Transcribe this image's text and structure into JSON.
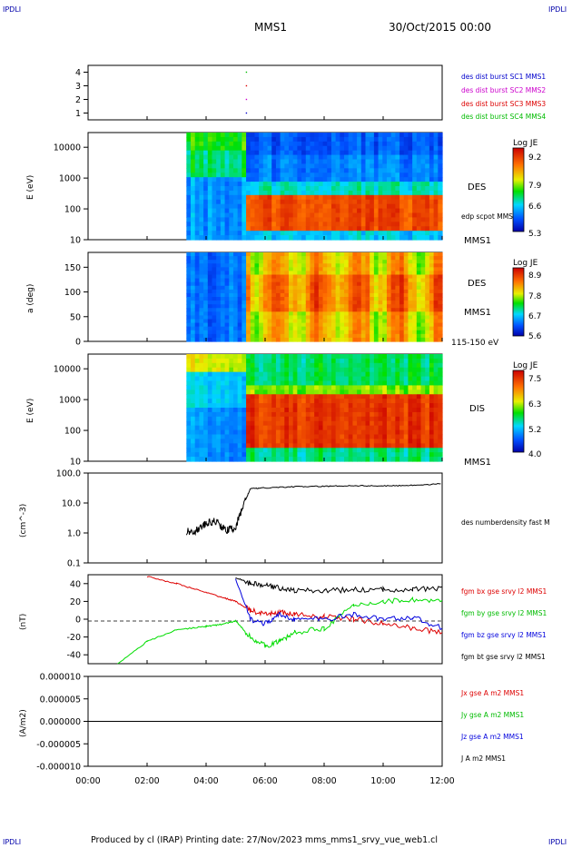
{
  "header": {
    "corner_left": "IPDLI",
    "corner_right": "IPDLI",
    "spacecraft": "MMS1",
    "date": "30/Oct/2015 00:00",
    "footer": "Produced by cl (IRAP)   Printing date: 27/Nov/2023   mms_mms1_srvy_vue_web1.cl",
    "footer_corner_left": "IPDLI",
    "footer_corner_right": "IPDLI"
  },
  "colors": {
    "mms1": "#0000cc",
    "mms2": "#cc00cc",
    "mms3": "#dd0000",
    "mms4": "#00bb00",
    "bx": "#dd0000",
    "by": "#00dd00",
    "bz": "#0000dd",
    "bt": "#000000"
  },
  "chart_data": [
    {
      "type": "scatter",
      "title": "",
      "xlabel": "",
      "ylabel": "",
      "xlim": [
        "00:00",
        "12:00"
      ],
      "ylim": [
        0.5,
        4.5
      ],
      "yticks": [
        "1",
        "2",
        "3",
        "4"
      ],
      "legend": [
        "des dist burst SC1 MMS1",
        "des dist burst SC2 MMS2",
        "des dist burst SC3 MMS3",
        "des dist burst SC4 MMS4"
      ],
      "series": [
        {
          "name": "des dist burst SC1 MMS1",
          "x": [
            "05:22"
          ],
          "y": [
            1
          ]
        },
        {
          "name": "des dist burst SC2 MMS2",
          "x": [
            "05:22"
          ],
          "y": [
            2
          ]
        },
        {
          "name": "des dist burst SC3 MMS3",
          "x": [
            "05:22"
          ],
          "y": [
            3
          ]
        },
        {
          "name": "des dist burst SC4 MMS4",
          "x": [
            "05:22"
          ],
          "y": [
            4
          ]
        }
      ]
    },
    {
      "type": "heatmap",
      "ylabel": "E (eV)",
      "yscale": "log",
      "ylim": [
        10,
        30000
      ],
      "yticks": [
        "10",
        "100",
        "1000",
        "10000"
      ],
      "right_labels": [
        "DES",
        "edp scpot MMS1",
        "MMS1"
      ],
      "colorbar": {
        "label": "Log JE",
        "ticks": [
          "9.2",
          "7.9",
          "6.6",
          "5.3"
        ],
        "range": [
          5.3,
          9.2
        ]
      },
      "data_start": "03:20",
      "description_values": {
        "peak_band_eV": [
          40,
          110
        ],
        "peak_logJE": 9.0
      }
    },
    {
      "type": "heatmap",
      "ylabel": "a (deg)",
      "ylim": [
        0,
        180
      ],
      "yticks": [
        "0",
        "50",
        "100",
        "150"
      ],
      "right_labels": [
        "DES",
        "MMS1",
        "115-150 eV"
      ],
      "colorbar": {
        "label": "Log JE",
        "ticks": [
          "8.9",
          "7.8",
          "6.7",
          "5.6"
        ],
        "range": [
          5.6,
          8.9
        ]
      },
      "data_start": "03:20"
    },
    {
      "type": "heatmap",
      "ylabel": "E (eV)",
      "yscale": "log",
      "ylim": [
        10,
        30000
      ],
      "yticks": [
        "10",
        "100",
        "1000",
        "10000"
      ],
      "right_labels": [
        "DIS",
        "MMS1"
      ],
      "colorbar": {
        "label": "Log JE",
        "ticks": [
          "7.5",
          "6.3",
          "5.2",
          "4.0"
        ],
        "range": [
          4.0,
          7.5
        ]
      },
      "data_start": "03:20"
    },
    {
      "type": "line",
      "ylabel": "(cm^-3)",
      "yscale": "log",
      "ylim": [
        0.1,
        100
      ],
      "yticks": [
        "0.1",
        "1.0",
        "10.0",
        "100.0"
      ],
      "legend": [
        "des numberdensity fast M"
      ],
      "series": [
        {
          "name": "des numberdensity fast M",
          "x": [
            "03:20",
            "03:40",
            "04:00",
            "04:20",
            "04:40",
            "05:00",
            "05:15",
            "05:30",
            "06:00",
            "07:00",
            "08:00",
            "09:00",
            "10:00",
            "11:00",
            "12:00"
          ],
          "y": [
            1.1,
            1.2,
            2.0,
            2.5,
            1.2,
            1.5,
            8.0,
            30,
            32,
            35,
            36,
            38,
            37,
            39,
            44
          ]
        }
      ]
    },
    {
      "type": "line",
      "ylabel": "(nT)",
      "ylim": [
        -50,
        50
      ],
      "yticks": [
        "-40",
        "-20",
        "0",
        "20",
        "40"
      ],
      "legend": [
        "fgm bx gse srvy l2 MMS1",
        "fgm by gse srvy l2 MMS1",
        "fgm bz gse srvy l2 MMS1",
        "fgm bt gse srvy l2 MMS1"
      ],
      "x": [
        "01:00",
        "02:00",
        "03:00",
        "04:00",
        "04:30",
        "05:00",
        "05:30",
        "06:00",
        "06:30",
        "07:00",
        "08:00",
        "09:00",
        "10:00",
        "11:00",
        "12:00"
      ],
      "series": [
        {
          "name": "fgm bx gse srvy l2 MMS1",
          "y": [
            null,
            48,
            40,
            30,
            25,
            20,
            10,
            5,
            8,
            5,
            3,
            0,
            -5,
            -10,
            -15
          ]
        },
        {
          "name": "fgm by gse srvy l2 MMS1",
          "y": [
            -50,
            -25,
            -12,
            -8,
            -6,
            -2,
            -20,
            -30,
            -25,
            -15,
            -10,
            15,
            20,
            22,
            20
          ]
        },
        {
          "name": "fgm bz gse srvy l2 MMS1",
          "y": [
            null,
            null,
            null,
            null,
            null,
            45,
            0,
            -5,
            5,
            0,
            0,
            5,
            0,
            2,
            -10
          ]
        },
        {
          "name": "fgm bt gse srvy l2 MMS1",
          "y": [
            null,
            null,
            null,
            null,
            null,
            47,
            40,
            38,
            35,
            32,
            32,
            33,
            33,
            34,
            34
          ]
        }
      ]
    },
    {
      "type": "line",
      "ylabel": "(A/m2)",
      "ylim": [
        -1e-05,
        1e-05
      ],
      "yticks": [
        "-0.000010",
        "-0.000005",
        "0.000000",
        "0.000005",
        "0.000010"
      ],
      "xticks": [
        "00:00",
        "02:00",
        "04:00",
        "06:00",
        "08:00",
        "10:00",
        "12:00"
      ],
      "legend": [
        "Jx gse A m2 MMS1",
        "Jy gse A m2 MMS1",
        "Jz gse A m2 MMS1",
        "J A m2 MMS1"
      ],
      "series": [
        {
          "name": "Jx gse A m2 MMS1",
          "x": [
            "00:00",
            "12:00"
          ],
          "y": [
            0,
            0
          ]
        },
        {
          "name": "Jy gse A m2 MMS1",
          "x": [
            "00:00",
            "12:00"
          ],
          "y": [
            0,
            0
          ]
        },
        {
          "name": "Jz gse A m2 MMS1",
          "x": [
            "00:00",
            "12:00"
          ],
          "y": [
            0,
            0
          ]
        },
        {
          "name": "J A m2 MMS1",
          "x": [
            "00:00",
            "12:00"
          ],
          "y": [
            0,
            0
          ]
        }
      ]
    }
  ]
}
